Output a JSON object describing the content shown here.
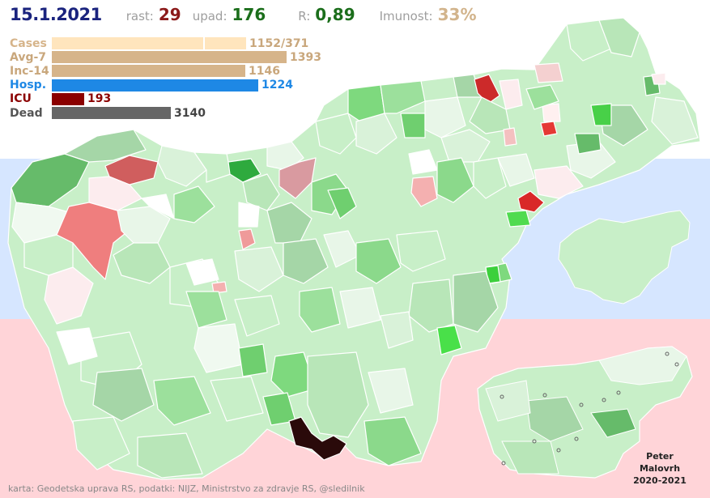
{
  "header": {
    "date": "15.1.2021",
    "rise_label": "rast:",
    "rise_value": "29",
    "fall_label": "upad:",
    "fall_value": "176",
    "r_label": "R:",
    "r_value": "0,89",
    "immunity_label": "Imunost:",
    "immunity_value": "33%"
  },
  "stats": [
    {
      "label": "Cases",
      "value": "1152/371",
      "color": "#ffe5bd"
    },
    {
      "label": "Avg-7",
      "value": "1393",
      "color": "#d6b48a"
    },
    {
      "label": "Inc-14",
      "value": "1146",
      "color": "#d6b48a"
    },
    {
      "label": "Hosp.",
      "value": "1224",
      "color": "#1e88e5"
    },
    {
      "label": "ICU",
      "value": "193",
      "color": "#8b0000"
    },
    {
      "label": "Dead",
      "value": "3140",
      "color": "#666666"
    }
  ],
  "stats_numeric": {
    "cases_total": 1152,
    "cases_secondary": 371,
    "avg7": 1393,
    "inc14": 1146,
    "hosp": 1224,
    "icu": 193,
    "dead": 3140
  },
  "footer": {
    "source": "karta: Geodetska uprava RS,  podatki: NIJZ, Ministrstvo za zdravje RS, @sledilnik"
  },
  "author": {
    "line1": "Peter",
    "line2": "Malovrh",
    "line3": "2020-2021"
  },
  "colors": {
    "band_white": "#ffffff",
    "band_blue": "#d6e6ff",
    "band_red": "#ffd4d8",
    "high_growth": "#e53935",
    "decline": "#66bb6a"
  }
}
